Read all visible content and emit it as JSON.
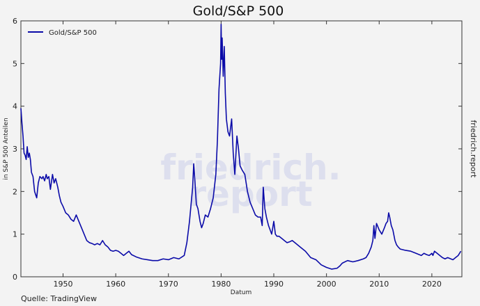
{
  "chart_data": {
    "type": "line",
    "title": "Gold/S&P 500",
    "xlabel": "Datum",
    "ylabel": "in S&P 500 Anteilen",
    "xlim": [
      1942,
      2025.7
    ],
    "ylim": [
      0,
      6
    ],
    "xticks": [
      "1950",
      "1960",
      "1970",
      "1980",
      "1990",
      "2000",
      "2010",
      "2020"
    ],
    "yticks": [
      "0",
      "1",
      "2",
      "3",
      "4",
      "5",
      "6"
    ],
    "legend": {
      "label": "Gold/S&P 500",
      "placement": "top-left"
    },
    "grid": false,
    "line_color": "#0a0aa8",
    "series": [
      {
        "name": "Gold/S&P 500",
        "x": [
          1942.0,
          1942.2,
          1942.4,
          1942.6,
          1942.8,
          1943.0,
          1943.2,
          1943.4,
          1943.6,
          1943.8,
          1944.0,
          1944.3,
          1944.6,
          1945.0,
          1945.3,
          1945.6,
          1946.0,
          1946.2,
          1946.5,
          1946.8,
          1947.0,
          1947.3,
          1947.6,
          1948.0,
          1948.3,
          1948.6,
          1949.0,
          1949.3,
          1949.6,
          1950.0,
          1950.5,
          1951.0,
          1951.5,
          1952.0,
          1952.5,
          1953.0,
          1953.5,
          1954.0,
          1954.5,
          1955.0,
          1955.5,
          1956.0,
          1956.5,
          1957.0,
          1957.5,
          1958.0,
          1958.5,
          1959.0,
          1959.5,
          1960.0,
          1960.5,
          1961.0,
          1961.5,
          1962.0,
          1962.5,
          1963.0,
          1964.0,
          1965.0,
          1966.0,
          1967.0,
          1968.0,
          1969.0,
          1970.0,
          1971.0,
          1972.0,
          1973.0,
          1973.5,
          1974.0,
          1974.3,
          1974.6,
          1974.8,
          1975.0,
          1975.3,
          1975.6,
          1976.0,
          1976.3,
          1976.6,
          1977.0,
          1977.5,
          1978.0,
          1978.5,
          1979.0,
          1979.3,
          1979.6,
          1979.9,
          1980.0,
          1980.1,
          1980.2,
          1980.4,
          1980.6,
          1980.8,
          1981.0,
          1981.3,
          1981.6,
          1982.0,
          1982.3,
          1982.6,
          1983.0,
          1983.3,
          1983.6,
          1984.0,
          1984.5,
          1985.0,
          1985.5,
          1986.0,
          1986.5,
          1987.0,
          1987.5,
          1987.8,
          1988.0,
          1988.3,
          1988.6,
          1989.0,
          1989.3,
          1989.6,
          1990.0,
          1990.3,
          1990.6,
          1991.0,
          1991.5,
          1992.0,
          1992.5,
          1993.0,
          1993.5,
          1994.0,
          1995.0,
          1996.0,
          1997.0,
          1998.0,
          1999.0,
          2000.0,
          2001.0,
          2002.0,
          2002.5,
          2003.0,
          2004.0,
          2005.0,
          2006.0,
          2007.0,
          2007.5,
          2008.0,
          2008.5,
          2008.8,
          2009.0,
          2009.2,
          2009.5,
          2010.0,
          2010.5,
          2011.0,
          2011.3,
          2011.6,
          2011.8,
          2012.0,
          2012.3,
          2012.6,
          2013.0,
          2013.3,
          2013.6,
          2014.0,
          2015.0,
          2016.0,
          2017.0,
          2018.0,
          2018.5,
          2019.0,
          2019.5,
          2020.0,
          2020.2,
          2020.5,
          2021.0,
          2022.0,
          2022.5,
          2023.0,
          2024.0,
          2024.5,
          2025.0,
          2025.5
        ],
        "values": [
          3.95,
          3.6,
          3.3,
          2.9,
          2.85,
          2.75,
          3.05,
          2.8,
          2.9,
          2.75,
          2.45,
          2.35,
          2.0,
          1.85,
          2.2,
          2.35,
          2.3,
          2.35,
          2.25,
          2.4,
          2.3,
          2.35,
          2.05,
          2.4,
          2.2,
          2.3,
          2.1,
          1.9,
          1.75,
          1.65,
          1.5,
          1.45,
          1.35,
          1.3,
          1.45,
          1.3,
          1.15,
          1.0,
          0.85,
          0.8,
          0.78,
          0.75,
          0.78,
          0.75,
          0.85,
          0.75,
          0.7,
          0.62,
          0.6,
          0.62,
          0.6,
          0.55,
          0.5,
          0.55,
          0.6,
          0.52,
          0.46,
          0.42,
          0.4,
          0.38,
          0.38,
          0.42,
          0.4,
          0.45,
          0.42,
          0.5,
          0.8,
          1.3,
          1.7,
          2.1,
          2.65,
          2.3,
          1.7,
          1.6,
          1.3,
          1.15,
          1.25,
          1.45,
          1.4,
          1.6,
          1.85,
          2.4,
          3.2,
          4.4,
          5.0,
          5.92,
          5.1,
          5.6,
          4.7,
          5.4,
          4.3,
          3.7,
          3.4,
          3.3,
          3.7,
          2.9,
          2.4,
          3.3,
          3.0,
          2.6,
          2.5,
          2.4,
          2.0,
          1.75,
          1.6,
          1.45,
          1.4,
          1.4,
          1.2,
          2.1,
          1.6,
          1.4,
          1.2,
          1.1,
          1.0,
          1.3,
          1.0,
          0.95,
          0.95,
          0.9,
          0.85,
          0.8,
          0.82,
          0.85,
          0.8,
          0.7,
          0.6,
          0.45,
          0.4,
          0.28,
          0.22,
          0.18,
          0.2,
          0.25,
          0.32,
          0.38,
          0.35,
          0.38,
          0.42,
          0.45,
          0.55,
          0.7,
          0.85,
          1.2,
          0.9,
          1.25,
          1.1,
          1.0,
          1.15,
          1.25,
          1.3,
          1.5,
          1.4,
          1.2,
          1.1,
          0.85,
          0.75,
          0.7,
          0.65,
          0.62,
          0.6,
          0.55,
          0.5,
          0.55,
          0.52,
          0.5,
          0.55,
          0.5,
          0.6,
          0.55,
          0.45,
          0.42,
          0.45,
          0.4,
          0.45,
          0.5,
          0.6
        ]
      }
    ],
    "source": "Quelle: TradingView",
    "brand_label": "friedrich.report",
    "watermark": [
      "friedrich.",
      "report"
    ]
  }
}
